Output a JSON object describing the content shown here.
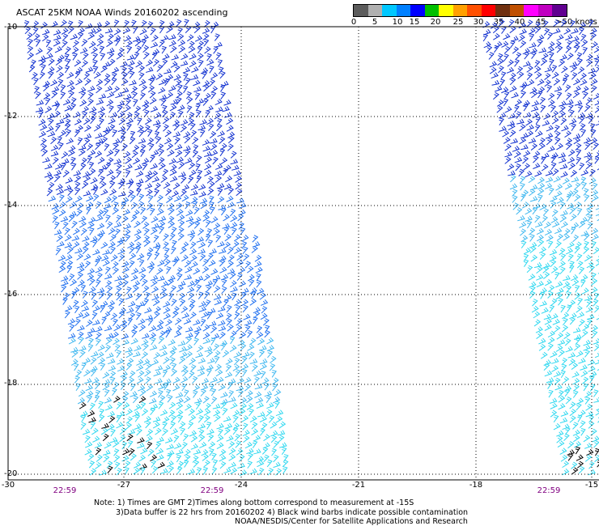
{
  "header": {
    "title": "ASCAT 25KM NOAA Winds 20160202 ascending"
  },
  "legend": {
    "ticks": [
      "0",
      "5",
      "10",
      "15",
      "20",
      "25",
      "30",
      "35",
      "40",
      "45",
      ">50 knots"
    ],
    "colors": [
      "#5c5c5c",
      "#b0b0b0",
      "#00c8ff",
      "#0080ff",
      "#0000ff",
      "#00c000",
      "#ffff00",
      "#ffa000",
      "#ff5000",
      "#ff0000",
      "#703010",
      "#c05000",
      "#ff00ff",
      "#c000c0",
      "#600090"
    ]
  },
  "map": {
    "lat_labels": [
      "-10",
      "-12",
      "-14",
      "-16",
      "-18",
      "-20"
    ],
    "lon_labels": [
      "-30",
      "-27",
      "-24",
      "-21",
      "-18",
      "-15"
    ],
    "times": [
      "22:59",
      "22:59",
      "22:59"
    ],
    "barb_colors": {
      "dark_blue": "#1030d0",
      "blue": "#2070f0",
      "light_blue": "#40b8f0",
      "cyan": "#30d8f0",
      "contaminated": "#000000"
    }
  },
  "notes": {
    "line1": "Note: 1) Times are GMT 2)Times along bottom correspond to measurement at -15S",
    "line2": "3)Data buffer is 22 hrs from 20160202 4) Black wind barbs indicate possible contamination",
    "line3": "NOAA/NESDIS/Center for Satellite Applications and Research"
  }
}
